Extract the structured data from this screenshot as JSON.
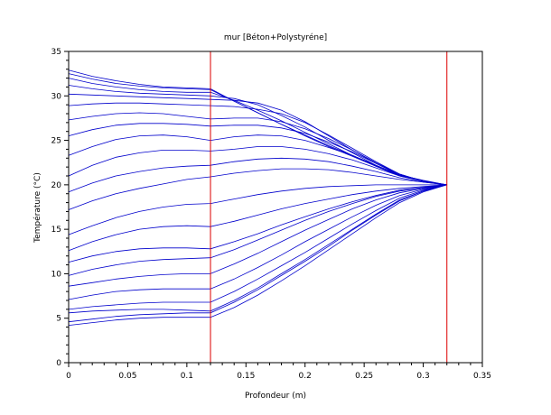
{
  "chart_data": {
    "type": "line",
    "title": "mur [Béton+Polystyréne]",
    "xlabel": "Profondeur (m)",
    "ylabel": "Température (°C)",
    "xlim": [
      0,
      0.35
    ],
    "ylim": [
      0,
      35
    ],
    "xticks": [
      0,
      0.05,
      0.1,
      0.15,
      0.2,
      0.25,
      0.3,
      0.35
    ],
    "yticks": [
      0,
      5,
      10,
      15,
      20,
      25,
      30,
      35
    ],
    "xtick_labels": [
      "0",
      "0.05",
      "0.1",
      "0.15",
      "0.2",
      "0.25",
      "0.3",
      "0.35"
    ],
    "ytick_labels": [
      "0",
      "5",
      "10",
      "15",
      "20",
      "25",
      "30",
      "35"
    ],
    "grid": false,
    "legend": "none",
    "line_color": "#0000cc",
    "marker_color": "#dd0000",
    "vertical_markers_x": [
      0.12,
      0.32
    ],
    "x": [
      0,
      0.02,
      0.04,
      0.06,
      0.08,
      0.1,
      0.12,
      0.14,
      0.16,
      0.18,
      0.2,
      0.22,
      0.24,
      0.26,
      0.28,
      0.3,
      0.32
    ],
    "series": [
      {
        "values": [
          32.9,
          32.2,
          31.7,
          31.3,
          31.0,
          30.9,
          30.8,
          29.4,
          28.1,
          26.8,
          25.6,
          24.4,
          23.3,
          22.2,
          21.1,
          20.5,
          20.0
        ]
      },
      {
        "values": [
          32.5,
          31.9,
          31.4,
          31.1,
          30.9,
          30.8,
          30.7,
          29.4,
          28.1,
          26.8,
          25.5,
          24.3,
          23.2,
          22.1,
          21.1,
          20.4,
          20.0
        ]
      },
      {
        "values": [
          32.0,
          31.4,
          31.0,
          30.7,
          30.5,
          30.4,
          30.4,
          29.5,
          28.4,
          27.2,
          25.9,
          24.6,
          23.3,
          22.1,
          21.0,
          20.4,
          20.0
        ]
      },
      {
        "values": [
          31.2,
          30.8,
          30.5,
          30.3,
          30.2,
          30.1,
          30.0,
          29.7,
          29.0,
          27.8,
          26.5,
          25.0,
          23.6,
          22.2,
          21.0,
          20.4,
          20.0
        ]
      },
      {
        "values": [
          30.2,
          30.1,
          30.0,
          29.9,
          29.8,
          29.7,
          29.6,
          29.5,
          29.2,
          28.4,
          27.1,
          25.5,
          23.9,
          22.4,
          21.1,
          20.4,
          20.0
        ]
      },
      {
        "values": [
          28.9,
          29.1,
          29.2,
          29.2,
          29.1,
          29.0,
          28.9,
          28.8,
          28.5,
          28.0,
          27.0,
          25.6,
          24.1,
          22.6,
          21.2,
          20.4,
          20.0
        ]
      },
      {
        "values": [
          27.3,
          27.7,
          28.0,
          28.1,
          28.0,
          27.7,
          27.4,
          27.5,
          27.5,
          27.1,
          26.3,
          25.2,
          23.9,
          22.5,
          21.2,
          20.4,
          20.0
        ]
      },
      {
        "values": [
          25.5,
          26.2,
          26.7,
          26.9,
          26.9,
          26.8,
          26.6,
          26.7,
          26.7,
          26.4,
          25.8,
          24.8,
          23.7,
          22.4,
          21.2,
          20.4,
          20.0
        ]
      },
      {
        "values": [
          23.3,
          24.3,
          25.1,
          25.5,
          25.6,
          25.4,
          25.0,
          25.4,
          25.6,
          25.5,
          25.0,
          24.2,
          23.3,
          22.2,
          21.1,
          20.4,
          20.0
        ]
      },
      {
        "values": [
          21.0,
          22.2,
          23.1,
          23.6,
          23.9,
          23.9,
          23.8,
          24.0,
          24.3,
          24.3,
          24.0,
          23.5,
          22.8,
          21.9,
          21.0,
          20.4,
          20.0
        ]
      },
      {
        "values": [
          19.2,
          20.2,
          21.0,
          21.5,
          21.9,
          22.1,
          22.2,
          22.6,
          22.9,
          23.0,
          22.9,
          22.6,
          22.1,
          21.5,
          20.8,
          20.3,
          20.0
        ]
      },
      {
        "values": [
          17.2,
          18.2,
          19.0,
          19.6,
          20.1,
          20.6,
          20.9,
          21.3,
          21.6,
          21.8,
          21.8,
          21.7,
          21.4,
          21.0,
          20.6,
          20.3,
          20.0
        ]
      },
      {
        "values": [
          14.4,
          15.4,
          16.3,
          17.0,
          17.5,
          17.8,
          17.9,
          18.4,
          18.9,
          19.3,
          19.6,
          19.8,
          19.9,
          20.0,
          20.0,
          20.0,
          20.0
        ]
      },
      {
        "values": [
          12.6,
          13.6,
          14.4,
          15.0,
          15.3,
          15.4,
          15.3,
          15.9,
          16.6,
          17.3,
          17.9,
          18.4,
          18.9,
          19.3,
          19.6,
          19.8,
          20.0
        ]
      },
      {
        "values": [
          11.3,
          12.0,
          12.5,
          12.8,
          12.9,
          12.9,
          12.8,
          13.6,
          14.5,
          15.5,
          16.4,
          17.3,
          18.1,
          18.8,
          19.4,
          19.7,
          20.0
        ]
      },
      {
        "values": [
          9.8,
          10.5,
          11.0,
          11.4,
          11.6,
          11.7,
          11.8,
          12.7,
          13.8,
          14.9,
          16.0,
          17.0,
          17.9,
          18.7,
          19.3,
          19.7,
          20.0
        ]
      },
      {
        "values": [
          8.6,
          9.0,
          9.4,
          9.7,
          9.9,
          10.0,
          10.0,
          11.1,
          12.3,
          13.6,
          14.9,
          16.1,
          17.3,
          18.3,
          19.1,
          19.6,
          20.0
        ]
      },
      {
        "values": [
          7.1,
          7.6,
          8.0,
          8.2,
          8.3,
          8.3,
          8.3,
          9.4,
          10.7,
          12.1,
          13.6,
          15.0,
          16.4,
          17.7,
          18.8,
          19.5,
          20.0
        ]
      },
      {
        "values": [
          6.0,
          6.3,
          6.5,
          6.7,
          6.8,
          6.8,
          6.8,
          8.0,
          9.4,
          10.9,
          12.4,
          14.0,
          15.6,
          17.1,
          18.5,
          19.4,
          20.0
        ]
      },
      {
        "values": [
          5.6,
          5.8,
          5.9,
          6.0,
          6.0,
          5.9,
          5.8,
          7.0,
          8.4,
          10.0,
          11.6,
          13.3,
          15.0,
          16.7,
          18.3,
          19.3,
          20.0
        ]
      },
      {
        "values": [
          4.6,
          4.9,
          5.2,
          5.4,
          5.5,
          5.6,
          5.6,
          6.8,
          8.2,
          9.8,
          11.4,
          13.1,
          14.9,
          16.6,
          18.2,
          19.3,
          20.0
        ]
      },
      {
        "values": [
          4.2,
          4.5,
          4.8,
          5.0,
          5.1,
          5.1,
          5.1,
          6.2,
          7.6,
          9.2,
          10.9,
          12.7,
          14.5,
          16.3,
          18.0,
          19.2,
          20.0
        ]
      }
    ]
  }
}
